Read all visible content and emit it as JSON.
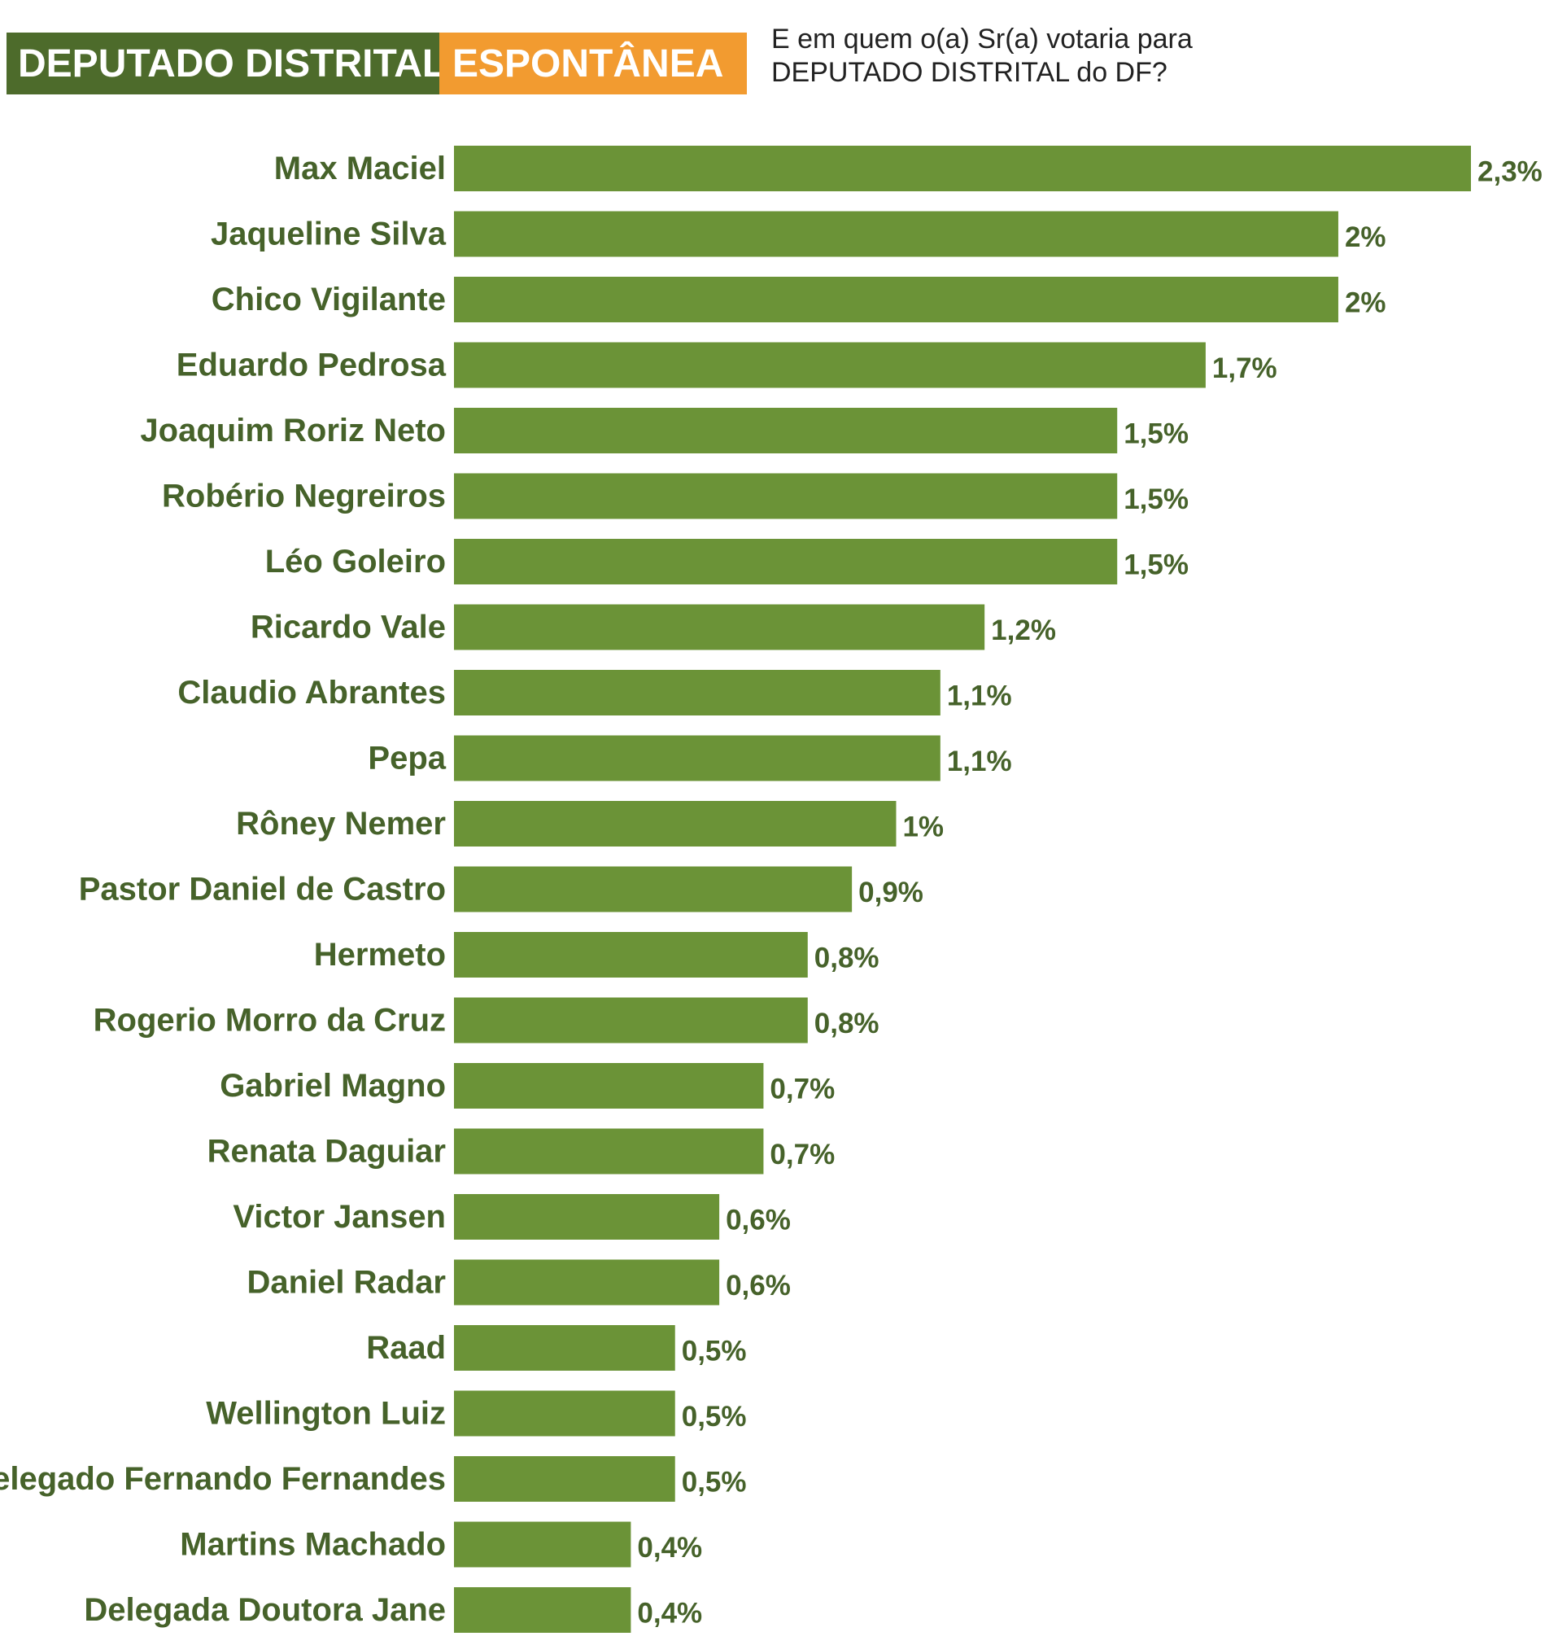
{
  "header": {
    "title": "DEPUTADO DISTRITAL",
    "subtitle": "ESPONTÂNEA",
    "question_line1": "E em quem o(a) Sr(a) votaria para",
    "question_line2": "DEPUTADO DISTRITAL do DF?"
  },
  "colors": {
    "title_bg": "#4d6b2b",
    "subtitle_bg": "#f29b30",
    "bar": "#6b9337",
    "label": "#46622a"
  },
  "chart_data": {
    "type": "bar",
    "orientation": "horizontal",
    "title": "DEPUTADO DISTRITAL",
    "subtitle": "ESPONTÂNEA",
    "xlabel": "",
    "ylabel": "",
    "grid": false,
    "legend": "none",
    "unit": "%",
    "categories": [
      "Max Maciel",
      "Jaqueline Silva",
      "Chico Vigilante",
      "Eduardo Pedrosa",
      "Joaquim Roriz Neto",
      "Robério Negreiros",
      "Léo Goleiro",
      "Ricardo Vale",
      "Claudio Abrantes",
      "Pepa",
      "Rôney Nemer",
      "Pastor Daniel de Castro",
      "Hermeto",
      "Rogerio Morro da Cruz",
      "Gabriel Magno",
      "Renata Daguiar",
      "Victor Jansen",
      "Daniel Radar",
      "Raad",
      "Wellington Luiz",
      "Delegado Fernando Fernandes",
      "Martins Machado",
      "Delegada Doutora Jane"
    ],
    "values": [
      2.3,
      2,
      2,
      1.7,
      1.5,
      1.5,
      1.5,
      1.2,
      1.1,
      1.1,
      1,
      0.9,
      0.8,
      0.8,
      0.7,
      0.7,
      0.6,
      0.6,
      0.5,
      0.5,
      0.5,
      0.4,
      0.4
    ],
    "value_labels": [
      "2,3%",
      "2%",
      "2%",
      "1,7%",
      "1,5%",
      "1,5%",
      "1,5%",
      "1,2%",
      "1,1%",
      "1,1%",
      "1%",
      "0,9%",
      "0,8%",
      "0,8%",
      "0,7%",
      "0,7%",
      "0,6%",
      "0,6%",
      "0,5%",
      "0,5%",
      "0,5%",
      "0,4%",
      "0,4%"
    ],
    "xlim": [
      0,
      2.3
    ]
  }
}
